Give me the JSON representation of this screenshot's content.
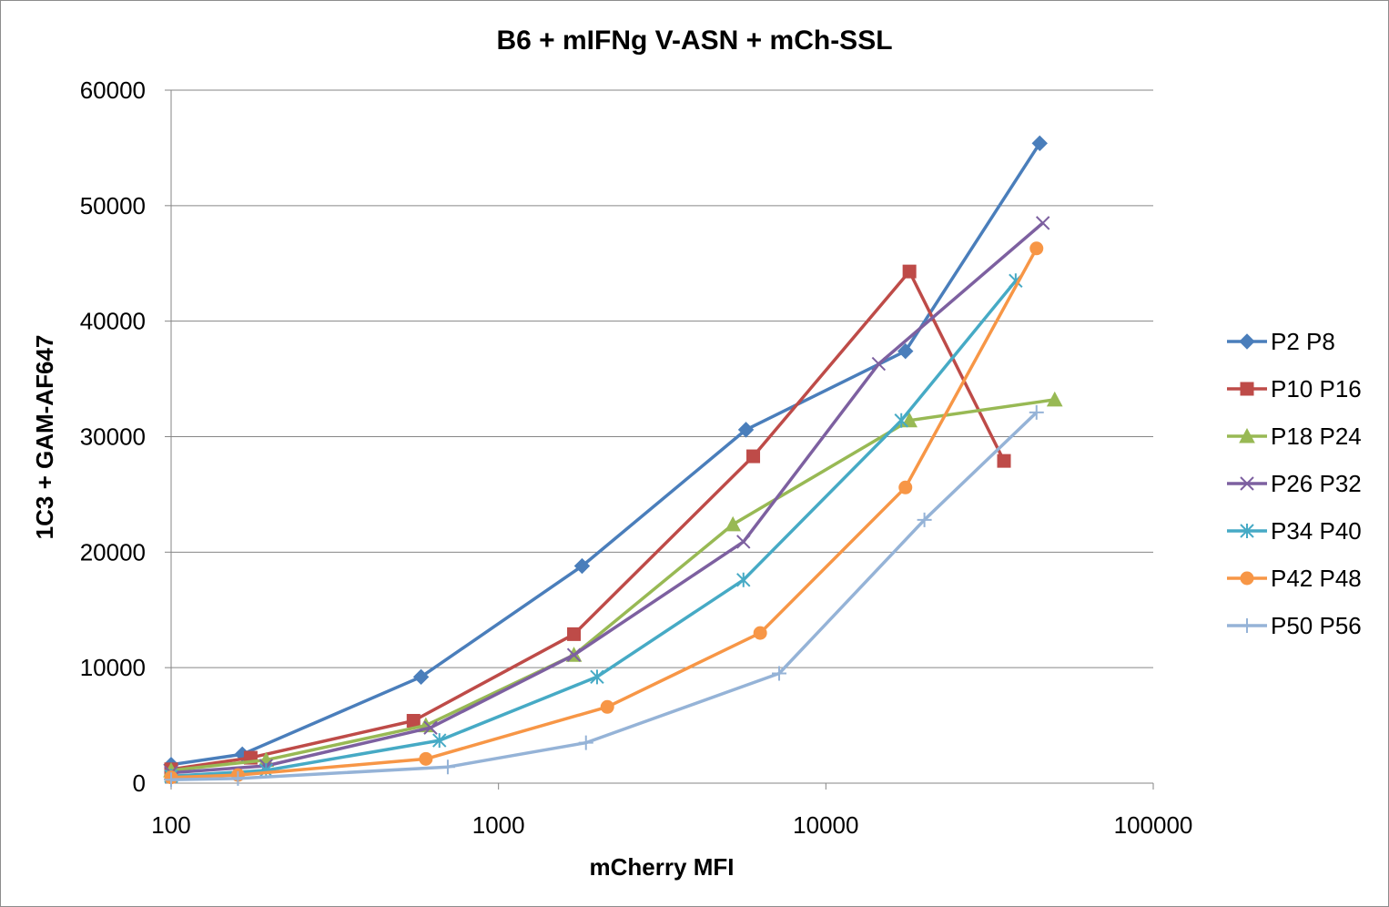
{
  "chart_data": {
    "type": "line",
    "title": "B6 + mIFNg V-ASN + mCh-SSL",
    "xlabel": "mCherry MFI",
    "ylabel": "1C3 + GAM-AF647",
    "xscale": "log",
    "xlim": [
      100,
      100000
    ],
    "ylim": [
      0,
      60000
    ],
    "xticks": [
      100,
      1000,
      10000,
      100000
    ],
    "xtick_labels": [
      "100",
      "1000",
      "10000",
      "100000"
    ],
    "yticks": [
      0,
      10000,
      20000,
      30000,
      40000,
      50000,
      60000
    ],
    "ytick_labels": [
      "0",
      "10000",
      "20000",
      "30000",
      "40000",
      "50000",
      "60000"
    ],
    "grid": "horizontal",
    "legend_position": "right",
    "series": [
      {
        "name": "P2 P8",
        "color": "#4a7ebb",
        "marker": "diamond",
        "x": [
          100,
          165,
          580,
          1800,
          5700,
          17500,
          45000
        ],
        "y": [
          1600,
          2500,
          9200,
          18800,
          30600,
          37400,
          55400
        ]
      },
      {
        "name": "P10 P16",
        "color": "#be4b48",
        "marker": "square",
        "x": [
          100,
          175,
          550,
          1700,
          6000,
          18000,
          35000
        ],
        "y": [
          1200,
          2200,
          5400,
          12900,
          28300,
          44300,
          27900
        ]
      },
      {
        "name": "P18 P24",
        "color": "#98b954",
        "marker": "triangle",
        "x": [
          100,
          195,
          600,
          1700,
          5200,
          18000,
          50000
        ],
        "y": [
          1100,
          2000,
          5000,
          11100,
          22400,
          31400,
          33200
        ]
      },
      {
        "name": "P26 P32",
        "color": "#7d60a0",
        "marker": "x",
        "x": [
          100,
          195,
          620,
          1700,
          5600,
          14500,
          46000
        ],
        "y": [
          900,
          1500,
          4800,
          11100,
          20900,
          36300,
          48500
        ]
      },
      {
        "name": "P34 P40",
        "color": "#46aac5",
        "marker": "asterisk",
        "x": [
          100,
          195,
          660,
          2000,
          5600,
          17000,
          38000
        ],
        "y": [
          600,
          1100,
          3700,
          9200,
          17600,
          31400,
          43500
        ]
      },
      {
        "name": "P42 P48",
        "color": "#f79646",
        "marker": "circle",
        "x": [
          100,
          160,
          600,
          2150,
          6300,
          17500,
          44000
        ],
        "y": [
          500,
          700,
          2100,
          6600,
          13000,
          25600,
          46300
        ]
      },
      {
        "name": "P50 P56",
        "color": "#95b3d7",
        "marker": "plus",
        "x": [
          100,
          160,
          700,
          1850,
          7200,
          20000,
          44000
        ],
        "y": [
          300,
          400,
          1400,
          3500,
          9500,
          22800,
          32100
        ]
      }
    ]
  }
}
